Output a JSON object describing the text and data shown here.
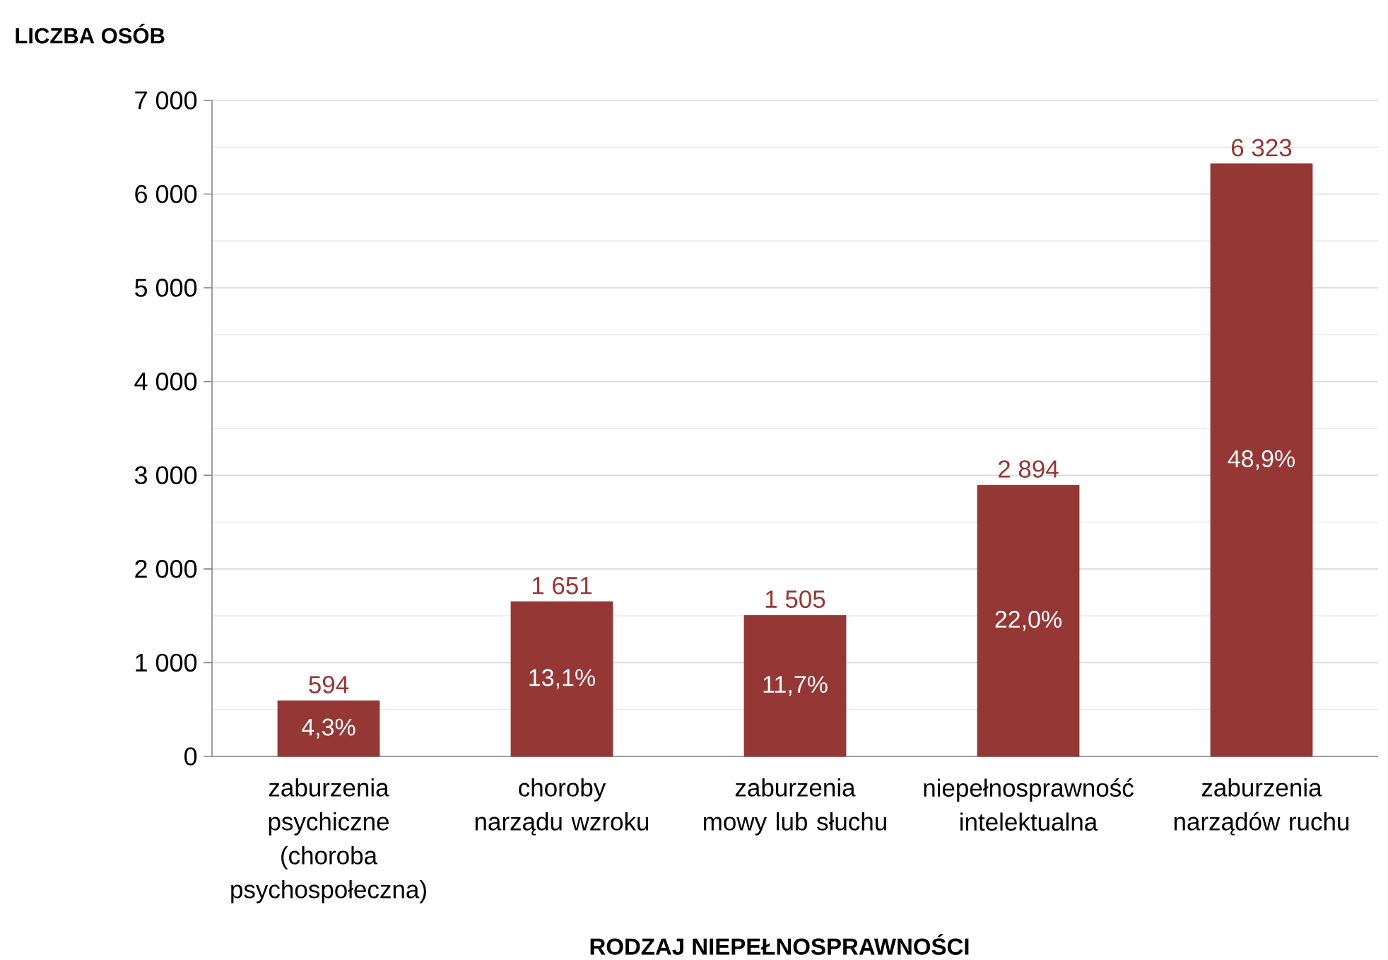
{
  "chart_data": {
    "type": "bar",
    "ylabel": "LICZBA OSÓB",
    "xlabel": "RODZAJ NIEPEŁNOSPRAWNOŚCI",
    "categories": [
      "zaburzenia psychiczne (choroba psychospołeczna)",
      "choroby narządu wzroku",
      "zaburzenia mowy lub słuchu",
      "niepełnosprawność intelektualna",
      "zaburzenia narządów ruchu"
    ],
    "values": [
      594,
      1651,
      1505,
      2894,
      6323
    ],
    "value_labels": [
      "594",
      "1 651",
      "1 505",
      "2 894",
      "6 323"
    ],
    "color": "#953735",
    "ylim": [
      0,
      7000
    ],
    "yticks": [
      0,
      {
        "value": 1000,
        "label": "1 000"
      },
      {
        "value": 2000,
        "label": "2 000"
      },
      {
        "value": 3000,
        "label": "3 000"
      },
      {
        "value": 4000,
        "label": "4 000"
      },
      {
        "value": 5000,
        "label": "5 000"
      },
      {
        "value": 6000,
        "label": "6 000"
      },
      {
        "value": 7000,
        "label": "7 000"
      }
    ],
    "grid": "y",
    "annotations": [
      "4,3%",
      "13,1%",
      "11,7%",
      "22,0%",
      "48,9%"
    ]
  }
}
